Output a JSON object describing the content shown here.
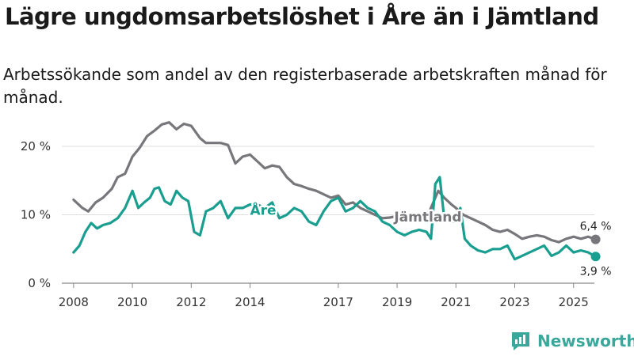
{
  "title": "Lägre ungdomsarbetslöshet i Åre än i Jämtland",
  "subtitle": "Arbetssökande som andel av den registerbaserade arbetskraften månad för månad.",
  "brand": {
    "name": "Newsworthy"
  },
  "colors": {
    "are": "#1a9e8f",
    "jamtland": "#77767b",
    "grid": "#dddddd",
    "brand": "#3aa79a"
  },
  "chart_data": {
    "type": "line",
    "title": "Lägre ungdomsarbetslöshet i Åre än i Jämtland",
    "xlabel": "",
    "ylabel": "",
    "xlim": [
      2007.6,
      2026.3
    ],
    "ylim": [
      0,
      20
    ],
    "y_ticks": [
      0,
      10,
      20
    ],
    "y_tick_labels": [
      "0 %",
      "10 %",
      "20 %"
    ],
    "x_ticks": [
      2008,
      2010,
      2012,
      2014,
      2017,
      2019,
      2021,
      2023,
      2025
    ],
    "x_tick_labels": [
      "2008",
      "2010",
      "2012",
      "2014",
      "2017",
      "2019",
      "2021",
      "2023",
      "2025"
    ],
    "series": [
      {
        "name": "Jämtland",
        "label": "Jämtland",
        "end_label": "6,4 %",
        "points": [
          [
            2008.0,
            12.2
          ],
          [
            2008.3,
            11.0
          ],
          [
            2008.5,
            10.5
          ],
          [
            2008.75,
            11.8
          ],
          [
            2009.0,
            12.5
          ],
          [
            2009.3,
            13.8
          ],
          [
            2009.5,
            15.5
          ],
          [
            2009.75,
            16.0
          ],
          [
            2010.0,
            18.5
          ],
          [
            2010.25,
            19.8
          ],
          [
            2010.5,
            21.5
          ],
          [
            2010.75,
            22.3
          ],
          [
            2011.0,
            23.2
          ],
          [
            2011.25,
            23.5
          ],
          [
            2011.5,
            22.5
          ],
          [
            2011.75,
            23.3
          ],
          [
            2012.0,
            23.0
          ],
          [
            2012.3,
            21.2
          ],
          [
            2012.5,
            20.5
          ],
          [
            2012.75,
            20.5
          ],
          [
            2013.0,
            20.5
          ],
          [
            2013.25,
            20.2
          ],
          [
            2013.5,
            17.5
          ],
          [
            2013.75,
            18.5
          ],
          [
            2014.0,
            18.8
          ],
          [
            2014.25,
            17.8
          ],
          [
            2014.5,
            16.8
          ],
          [
            2014.75,
            17.2
          ],
          [
            2015.0,
            17.0
          ],
          [
            2015.25,
            15.5
          ],
          [
            2015.5,
            14.5
          ],
          [
            2015.75,
            14.2
          ],
          [
            2016.0,
            13.8
          ],
          [
            2016.25,
            13.5
          ],
          [
            2016.5,
            13.0
          ],
          [
            2016.75,
            12.5
          ],
          [
            2017.0,
            12.8
          ],
          [
            2017.25,
            11.5
          ],
          [
            2017.5,
            11.8
          ],
          [
            2017.75,
            11.0
          ],
          [
            2018.0,
            10.5
          ],
          [
            2018.25,
            10.0
          ],
          [
            2018.5,
            9.5
          ],
          [
            2018.75,
            9.6
          ],
          [
            2019.0,
            9.8
          ],
          [
            2019.25,
            9.5
          ],
          [
            2019.5,
            9.0
          ],
          [
            2019.75,
            9.2
          ],
          [
            2020.0,
            9.5
          ],
          [
            2020.2,
            11.5
          ],
          [
            2020.4,
            13.5
          ],
          [
            2020.6,
            12.5
          ],
          [
            2020.85,
            11.5
          ],
          [
            2021.0,
            11.0
          ],
          [
            2021.25,
            10.0
          ],
          [
            2021.5,
            9.5
          ],
          [
            2021.75,
            9.0
          ],
          [
            2022.0,
            8.5
          ],
          [
            2022.25,
            7.8
          ],
          [
            2022.5,
            7.5
          ],
          [
            2022.75,
            7.8
          ],
          [
            2023.0,
            7.2
          ],
          [
            2023.25,
            6.5
          ],
          [
            2023.5,
            6.8
          ],
          [
            2023.75,
            7.0
          ],
          [
            2024.0,
            6.8
          ],
          [
            2024.25,
            6.3
          ],
          [
            2024.5,
            6.0
          ],
          [
            2024.75,
            6.5
          ],
          [
            2025.0,
            6.8
          ],
          [
            2025.25,
            6.5
          ],
          [
            2025.5,
            6.8
          ],
          [
            2025.75,
            6.4
          ]
        ]
      },
      {
        "name": "Åre",
        "label": "Åre",
        "end_label": "3,9 %",
        "points": [
          [
            2008.0,
            4.5
          ],
          [
            2008.2,
            5.5
          ],
          [
            2008.4,
            7.5
          ],
          [
            2008.6,
            8.8
          ],
          [
            2008.8,
            8.0
          ],
          [
            2009.0,
            8.5
          ],
          [
            2009.25,
            8.8
          ],
          [
            2009.5,
            9.5
          ],
          [
            2009.75,
            11.0
          ],
          [
            2010.0,
            13.5
          ],
          [
            2010.2,
            11.0
          ],
          [
            2010.4,
            11.8
          ],
          [
            2010.6,
            12.5
          ],
          [
            2010.75,
            13.8
          ],
          [
            2010.9,
            14.0
          ],
          [
            2011.1,
            12.0
          ],
          [
            2011.3,
            11.5
          ],
          [
            2011.5,
            13.5
          ],
          [
            2011.7,
            12.5
          ],
          [
            2011.9,
            12.0
          ],
          [
            2012.1,
            7.5
          ],
          [
            2012.3,
            7.0
          ],
          [
            2012.5,
            10.5
          ],
          [
            2012.75,
            11.0
          ],
          [
            2013.0,
            12.0
          ],
          [
            2013.25,
            9.5
          ],
          [
            2013.5,
            11.0
          ],
          [
            2013.75,
            11.0
          ],
          [
            2014.0,
            11.5
          ],
          [
            2014.25,
            11.5
          ],
          [
            2014.5,
            11.0
          ],
          [
            2014.75,
            11.8
          ],
          [
            2015.0,
            9.5
          ],
          [
            2015.25,
            10.0
          ],
          [
            2015.5,
            11.0
          ],
          [
            2015.75,
            10.5
          ],
          [
            2016.0,
            9.0
          ],
          [
            2016.25,
            8.5
          ],
          [
            2016.5,
            10.5
          ],
          [
            2016.75,
            12.0
          ],
          [
            2017.0,
            12.5
          ],
          [
            2017.25,
            10.5
          ],
          [
            2017.5,
            11.0
          ],
          [
            2017.75,
            12.0
          ],
          [
            2018.0,
            11.0
          ],
          [
            2018.25,
            10.5
          ],
          [
            2018.5,
            9.0
          ],
          [
            2018.75,
            8.5
          ],
          [
            2019.0,
            7.5
          ],
          [
            2019.25,
            7.0
          ],
          [
            2019.5,
            7.5
          ],
          [
            2019.75,
            7.8
          ],
          [
            2020.0,
            7.5
          ],
          [
            2020.15,
            6.5
          ],
          [
            2020.3,
            14.5
          ],
          [
            2020.45,
            15.5
          ],
          [
            2020.6,
            9.5
          ],
          [
            2020.75,
            9.0
          ],
          [
            2021.0,
            9.0
          ],
          [
            2021.15,
            11.0
          ],
          [
            2021.3,
            6.5
          ],
          [
            2021.5,
            5.5
          ],
          [
            2021.75,
            4.8
          ],
          [
            2022.0,
            4.5
          ],
          [
            2022.25,
            5.0
          ],
          [
            2022.5,
            5.0
          ],
          [
            2022.75,
            5.5
          ],
          [
            2023.0,
            3.5
          ],
          [
            2023.25,
            4.0
          ],
          [
            2023.5,
            4.5
          ],
          [
            2023.75,
            5.0
          ],
          [
            2024.0,
            5.5
          ],
          [
            2024.25,
            4.0
          ],
          [
            2024.5,
            4.5
          ],
          [
            2024.75,
            5.5
          ],
          [
            2025.0,
            4.5
          ],
          [
            2025.25,
            4.8
          ],
          [
            2025.5,
            4.5
          ],
          [
            2025.75,
            3.9
          ]
        ]
      }
    ]
  }
}
